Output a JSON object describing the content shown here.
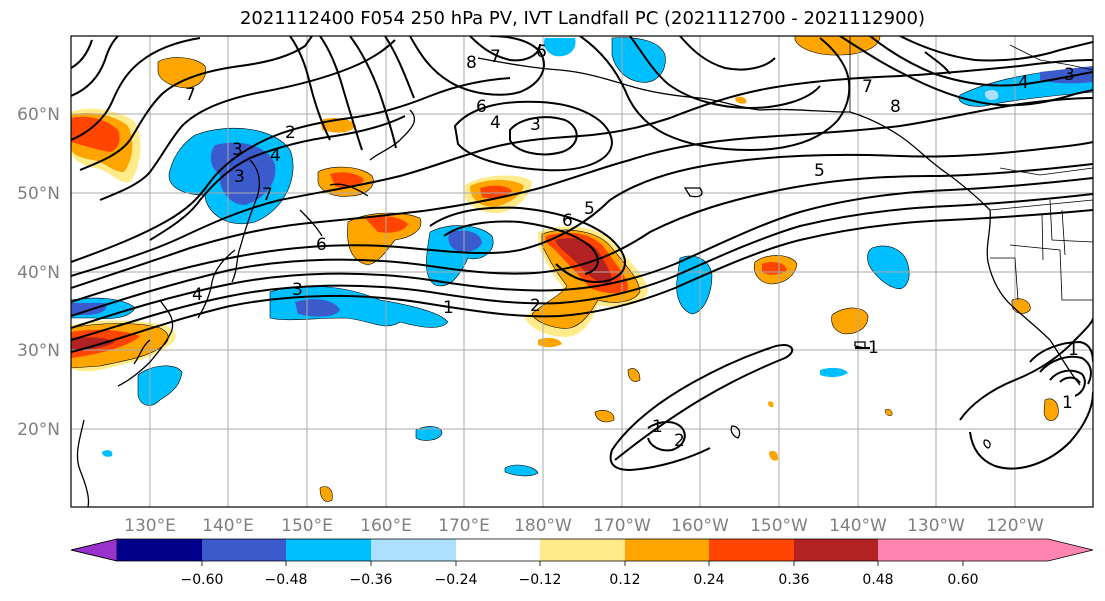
{
  "title": "2021112400 F054 250 hPa PV, IVT Landfall PC (2021112700 - 2021112900)",
  "map": {
    "latitude_labels": [
      "60°N",
      "50°N",
      "40°N",
      "30°N",
      "20°N"
    ],
    "longitude_labels": [
      "130°E",
      "140°E",
      "150°E",
      "160°E",
      "170°E",
      "180°W",
      "170°W",
      "160°W",
      "150°W",
      "140°W",
      "130°W",
      "120°W"
    ],
    "contour_labels": [
      "6",
      "8",
      "7",
      "7",
      "6",
      "4",
      "3",
      "2",
      "3",
      "4",
      "7",
      "3",
      "6",
      "4",
      "3",
      "1",
      "2",
      "5",
      "6",
      "5",
      "7",
      "8",
      "4",
      "3",
      "1",
      "1",
      "1",
      "2",
      "1"
    ]
  },
  "colorbar": {
    "tick_labels": [
      "−0.60",
      "−0.48",
      "−0.36",
      "−0.24",
      "−0.12",
      "0.12",
      "0.24",
      "0.36",
      "0.48",
      "0.60"
    ],
    "colors": [
      "#9932CC",
      "#00008B",
      "#3B5BCC",
      "#00BFFF",
      "#ADDFFF",
      "#FFFFFF",
      "#FFEB8A",
      "#FFA500",
      "#FF4500",
      "#B22222",
      "#FF85B0"
    ]
  }
}
